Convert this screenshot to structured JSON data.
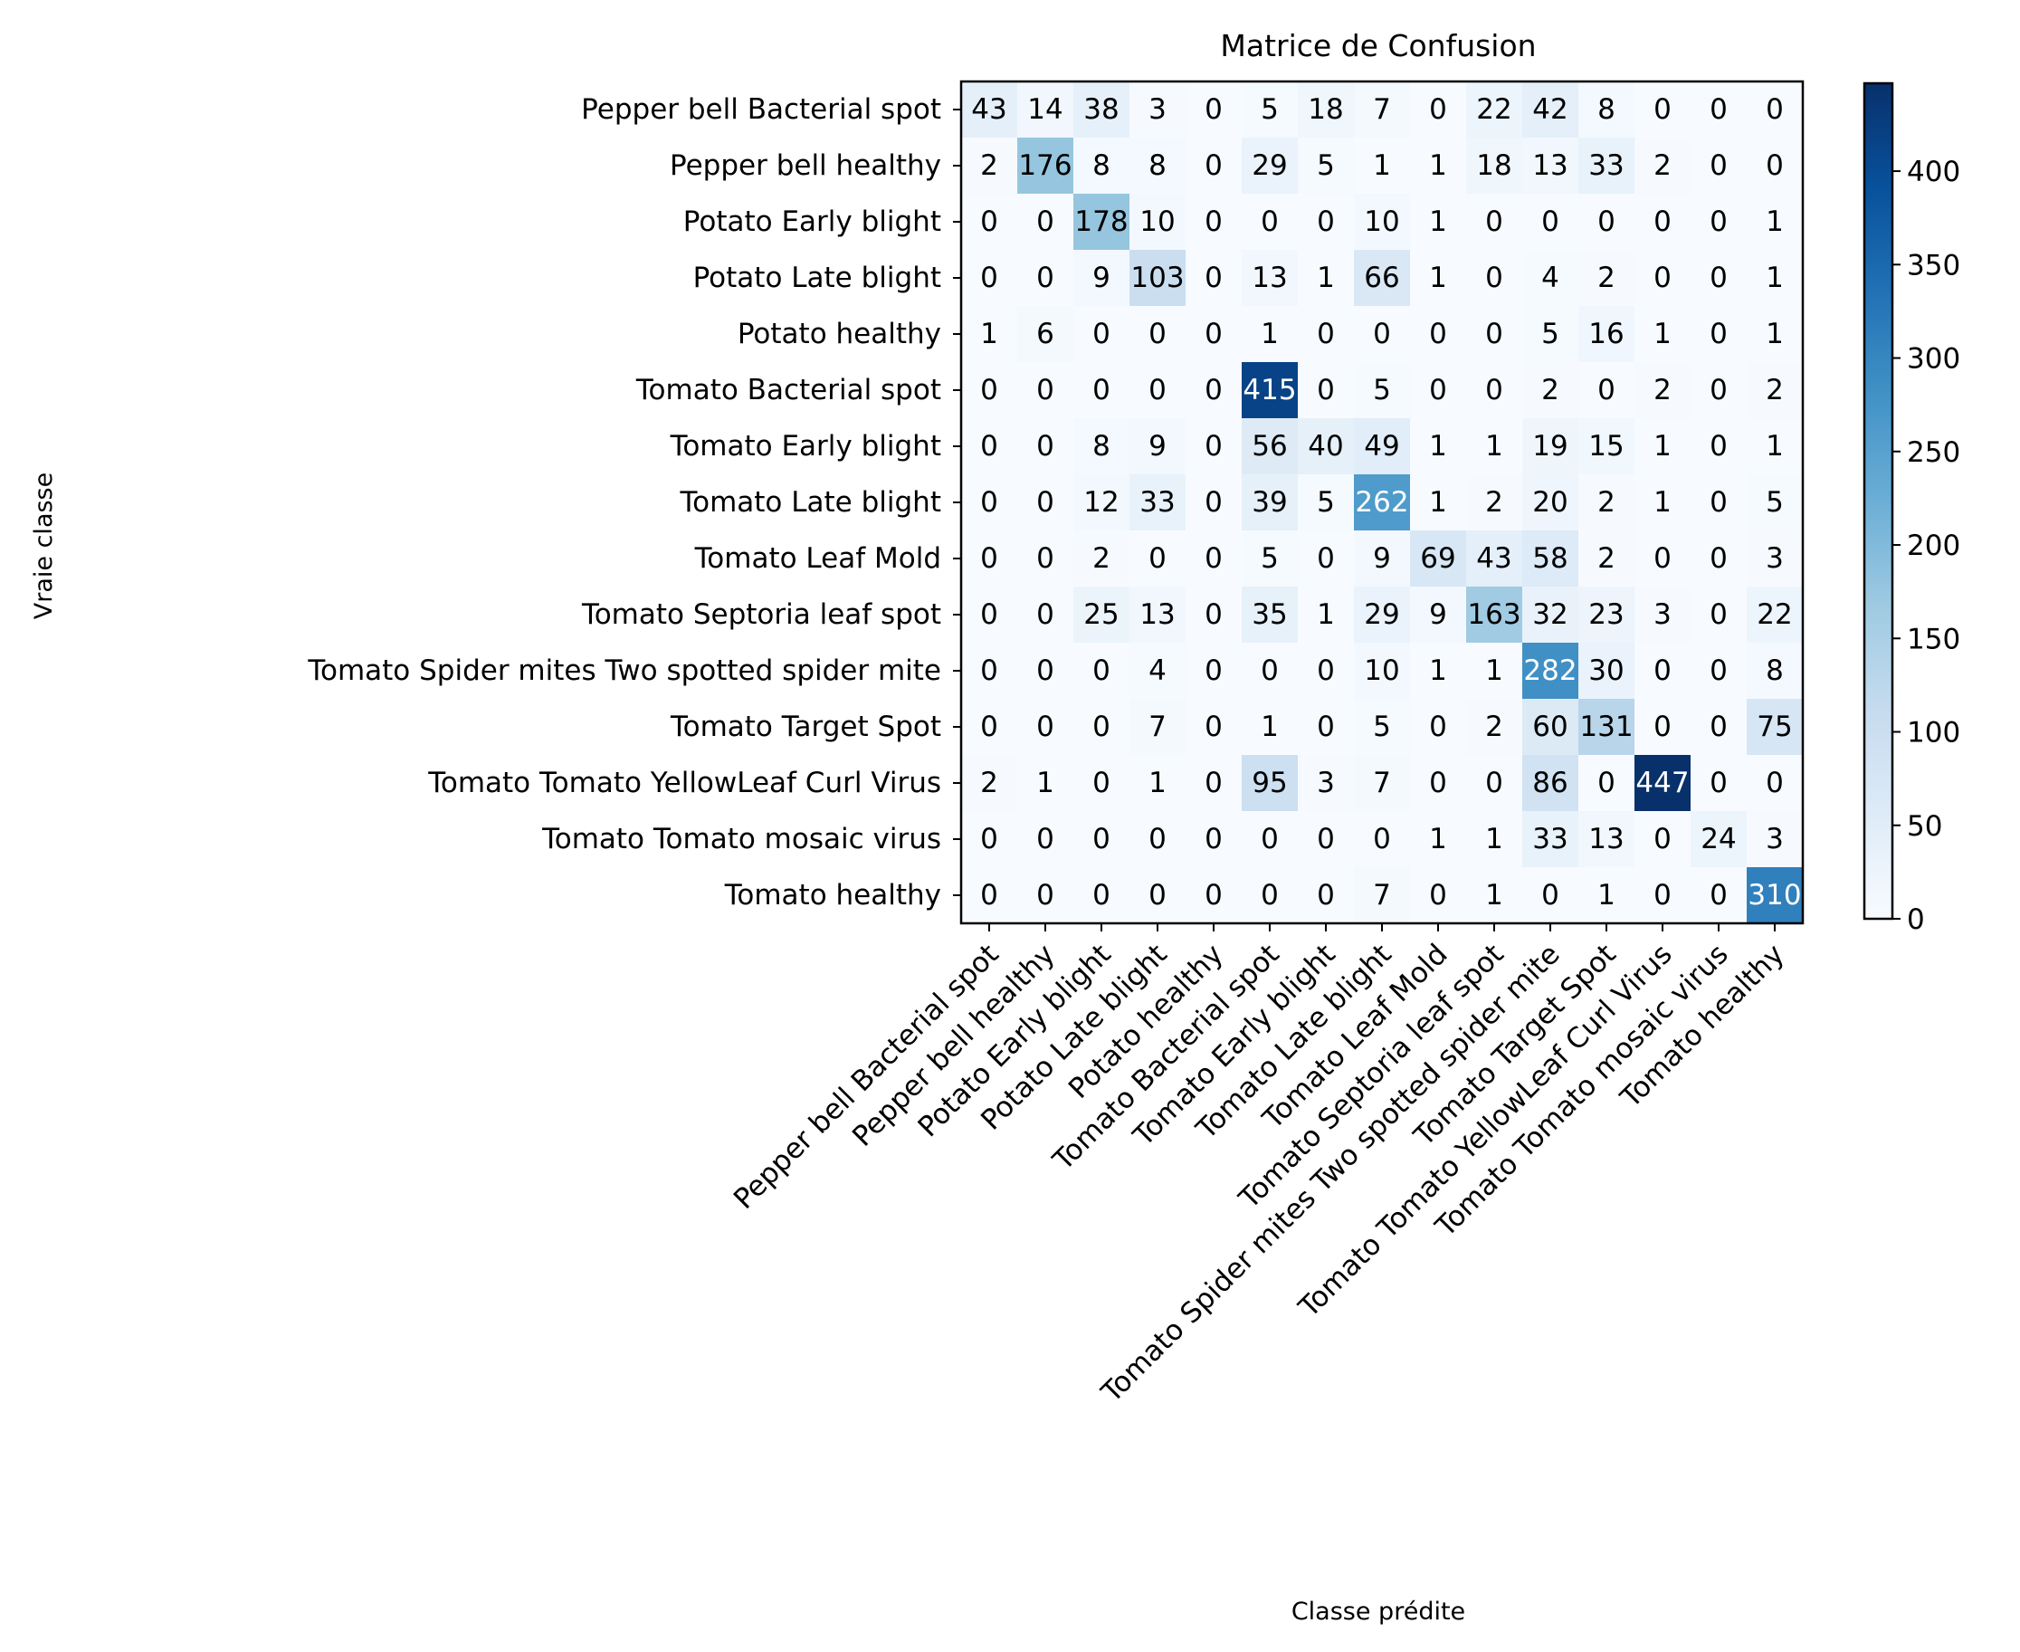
{
  "chart_data": {
    "type": "heatmap",
    "title": "Matrice de Confusion",
    "xlabel": "Classe prédite",
    "ylabel": "Vraie classe",
    "row_labels": [
      "Pepper  bell   Bacterial spot",
      "Pepper  bell   healthy",
      "Potato   Early blight",
      "Potato   Late blight",
      "Potato   healthy",
      "Tomato Bacterial spot",
      "Tomato Early blight",
      "Tomato Late blight",
      "Tomato Leaf Mold",
      "Tomato Septoria leaf spot",
      "Tomato Spider mites Two spotted spider mite",
      "Tomato  Target Spot",
      "Tomato  Tomato YellowLeaf  Curl Virus",
      "Tomato  Tomato mosaic virus",
      "Tomato healthy"
    ],
    "col_labels": [
      "Pepper  bell   Bacterial spot",
      "Pepper  bell   healthy",
      "Potato   Early blight",
      "Potato   Late blight",
      "Potato   healthy",
      "Tomato Bacterial spot",
      "Tomato Early blight",
      "Tomato Late blight",
      "Tomato Leaf Mold",
      "Tomato Septoria leaf spot",
      "Tomato Spider mites Two spotted spider mite",
      "Tomato  Target Spot",
      "Tomato  Tomato YellowLeaf  Curl Virus",
      "Tomato  Tomato mosaic virus",
      "Tomato healthy"
    ],
    "matrix": [
      [
        43,
        14,
        38,
        3,
        0,
        5,
        18,
        7,
        0,
        22,
        42,
        8,
        0,
        0,
        0
      ],
      [
        2,
        176,
        8,
        8,
        0,
        29,
        5,
        1,
        1,
        18,
        13,
        33,
        2,
        0,
        0
      ],
      [
        0,
        0,
        178,
        10,
        0,
        0,
        0,
        10,
        1,
        0,
        0,
        0,
        0,
        0,
        1
      ],
      [
        0,
        0,
        9,
        103,
        0,
        13,
        1,
        66,
        1,
        0,
        4,
        2,
        0,
        0,
        1
      ],
      [
        1,
        6,
        0,
        0,
        0,
        1,
        0,
        0,
        0,
        0,
        5,
        16,
        1,
        0,
        1
      ],
      [
        0,
        0,
        0,
        0,
        0,
        415,
        0,
        5,
        0,
        0,
        2,
        0,
        2,
        0,
        2
      ],
      [
        0,
        0,
        8,
        9,
        0,
        56,
        40,
        49,
        1,
        1,
        19,
        15,
        1,
        0,
        1
      ],
      [
        0,
        0,
        12,
        33,
        0,
        39,
        5,
        262,
        1,
        2,
        20,
        2,
        1,
        0,
        5
      ],
      [
        0,
        0,
        2,
        0,
        0,
        5,
        0,
        9,
        69,
        43,
        58,
        2,
        0,
        0,
        3
      ],
      [
        0,
        0,
        25,
        13,
        0,
        35,
        1,
        29,
        9,
        163,
        32,
        23,
        3,
        0,
        22
      ],
      [
        0,
        0,
        0,
        4,
        0,
        0,
        0,
        10,
        1,
        1,
        282,
        30,
        0,
        0,
        8
      ],
      [
        0,
        0,
        0,
        7,
        0,
        1,
        0,
        5,
        0,
        2,
        60,
        131,
        0,
        0,
        75
      ],
      [
        2,
        1,
        0,
        1,
        0,
        95,
        3,
        7,
        0,
        0,
        86,
        0,
        447,
        0,
        0
      ],
      [
        0,
        0,
        0,
        0,
        0,
        0,
        0,
        0,
        1,
        1,
        33,
        13,
        0,
        24,
        3
      ],
      [
        0,
        0,
        0,
        0,
        0,
        0,
        0,
        7,
        0,
        1,
        0,
        1,
        0,
        0,
        310
      ]
    ],
    "colormap": "Blues",
    "vmin": 0,
    "vmax": 447,
    "colorbar_ticks": [
      0,
      50,
      100,
      150,
      200,
      250,
      300,
      350,
      400
    ],
    "colors": {
      "low": "#f7fbff",
      "high": "#08306b",
      "text_dark": "#000000",
      "text_light": "#ffffff"
    }
  }
}
